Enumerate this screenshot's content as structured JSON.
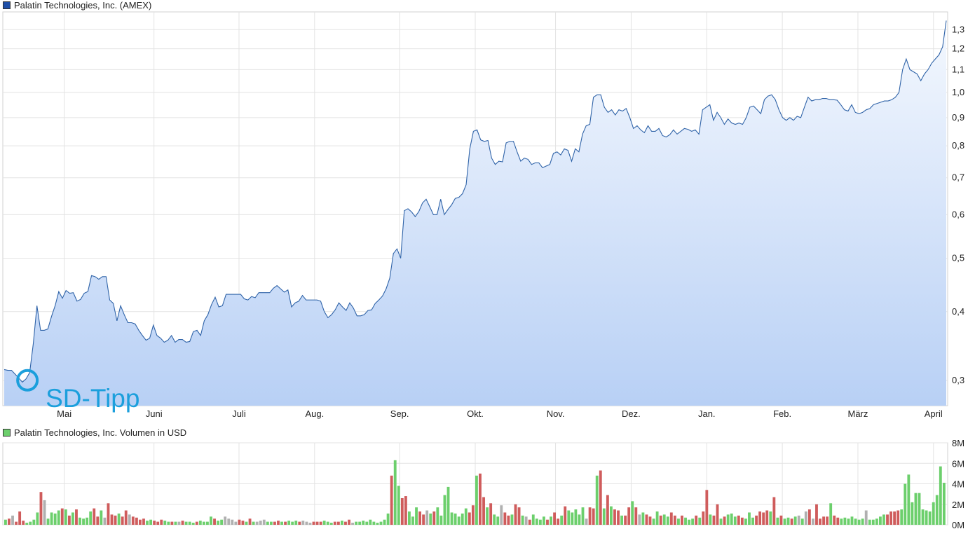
{
  "price_legend": {
    "label": "Palatin Technologies, Inc. (AMEX)",
    "color": "#1f4fa8"
  },
  "volume_legend": {
    "label": "Palatin Technologies, Inc. Volumen in USD",
    "color": "#6ccf6c"
  },
  "annotation": {
    "label": "SD-Tipp",
    "color": "#1b9fdc"
  },
  "chart_data": [
    {
      "type": "area",
      "scale": "log",
      "ylim": [
        0.27,
        1.4
      ],
      "yticks": [
        0.3,
        0.4,
        0.5,
        0.6,
        0.7,
        0.8,
        0.9,
        1.0,
        1.1,
        1.2,
        1.3
      ],
      "ytick_labels": [
        "0,3",
        "0,4",
        "0,5",
        "0,6",
        "0,7",
        "0,8",
        "0,9",
        "1,0",
        "1,1",
        "1,2",
        "1,3"
      ],
      "months": [
        "Mai",
        "Juni",
        "Juli",
        "Aug.",
        "Sep.",
        "Okt.",
        "Nov.",
        "Dez.",
        "Jan.",
        "Feb.",
        "März",
        "April"
      ],
      "month_pos": [
        0.065,
        0.16,
        0.25,
        0.33,
        0.42,
        0.5,
        0.585,
        0.665,
        0.745,
        0.825,
        0.905,
        0.985
      ],
      "series": [
        {
          "color": "#2f63a8",
          "values": [
            0.314,
            0.313,
            0.313,
            0.308,
            0.303,
            0.298,
            0.302,
            0.31,
            0.35,
            0.41,
            0.37,
            0.37,
            0.372,
            0.392,
            0.41,
            0.435,
            0.423,
            0.437,
            0.432,
            0.433,
            0.418,
            0.421,
            0.432,
            0.435,
            0.465,
            0.463,
            0.458,
            0.463,
            0.463,
            0.42,
            0.414,
            0.385,
            0.41,
            0.395,
            0.382,
            0.382,
            0.38,
            0.37,
            0.362,
            0.355,
            0.358,
            0.378,
            0.362,
            0.358,
            0.352,
            0.355,
            0.362,
            0.352,
            0.356,
            0.356,
            0.352,
            0.353,
            0.368,
            0.37,
            0.362,
            0.385,
            0.395,
            0.412,
            0.425,
            0.408,
            0.41,
            0.43,
            0.43,
            0.43,
            0.43,
            0.43,
            0.422,
            0.42,
            0.426,
            0.424,
            0.433,
            0.433,
            0.433,
            0.433,
            0.441,
            0.446,
            0.44,
            0.434,
            0.438,
            0.408,
            0.415,
            0.418,
            0.428,
            0.42,
            0.42,
            0.42,
            0.42,
            0.418,
            0.4,
            0.39,
            0.395,
            0.403,
            0.415,
            0.408,
            0.402,
            0.415,
            0.406,
            0.393,
            0.393,
            0.395,
            0.402,
            0.403,
            0.414,
            0.42,
            0.427,
            0.44,
            0.46,
            0.51,
            0.52,
            0.5,
            0.61,
            0.615,
            0.607,
            0.595,
            0.608,
            0.63,
            0.64,
            0.62,
            0.6,
            0.6,
            0.64,
            0.6,
            0.613,
            0.625,
            0.642,
            0.645,
            0.655,
            0.68,
            0.79,
            0.85,
            0.855,
            0.82,
            0.815,
            0.818,
            0.76,
            0.74,
            0.75,
            0.748,
            0.81,
            0.815,
            0.815,
            0.78,
            0.75,
            0.76,
            0.756,
            0.74,
            0.745,
            0.745,
            0.73,
            0.735,
            0.74,
            0.775,
            0.78,
            0.77,
            0.79,
            0.785,
            0.75,
            0.79,
            0.78,
            0.84,
            0.87,
            0.875,
            0.98,
            0.99,
            0.99,
            0.94,
            0.92,
            0.93,
            0.91,
            0.93,
            0.925,
            0.935,
            0.9,
            0.86,
            0.87,
            0.855,
            0.845,
            0.87,
            0.85,
            0.85,
            0.86,
            0.835,
            0.83,
            0.838,
            0.855,
            0.84,
            0.85,
            0.86,
            0.857,
            0.85,
            0.855,
            0.84,
            0.93,
            0.94,
            0.95,
            0.89,
            0.92,
            0.9,
            0.875,
            0.895,
            0.88,
            0.875,
            0.88,
            0.875,
            0.9,
            0.94,
            0.945,
            0.93,
            0.915,
            0.97,
            0.985,
            0.99,
            0.97,
            0.93,
            0.9,
            0.89,
            0.9,
            0.89,
            0.905,
            0.9,
            0.94,
            0.98,
            0.965,
            0.97,
            0.97,
            0.975,
            0.975,
            0.97,
            0.97,
            0.968,
            0.95,
            0.93,
            0.925,
            0.95,
            0.92,
            0.915,
            0.92,
            0.93,
            0.935,
            0.95,
            0.955,
            0.96,
            0.965,
            0.965,
            0.97,
            0.98,
            1.0,
            1.1,
            1.15,
            1.1,
            1.09,
            1.08,
            1.05,
            1.08,
            1.1,
            1.13,
            1.15,
            1.17,
            1.21,
            1.35
          ]
        }
      ]
    },
    {
      "type": "bar",
      "ylim": [
        0,
        8
      ],
      "yticks": [
        0,
        2,
        4,
        6,
        8
      ],
      "ytick_labels": [
        "0M",
        "2M",
        "4M",
        "6M",
        "8M"
      ],
      "up_color": "#6ccf6c",
      "down_color": "#cf5c5c",
      "neutral_color": "#b0b0b0",
      "values": [
        0.5,
        0.6,
        0.9,
        0.3,
        1.3,
        0.4,
        0.2,
        0.3,
        0.5,
        1.2,
        3.2,
        2.4,
        0.6,
        1.2,
        1.1,
        1.4,
        1.6,
        1.5,
        0.9,
        1.2,
        1.5,
        0.7,
        0.6,
        0.7,
        1.3,
        1.6,
        0.8,
        1.4,
        0.7,
        2.1,
        1.0,
        0.9,
        1.1,
        0.8,
        1.4,
        1.0,
        0.8,
        0.7,
        0.5,
        0.6,
        0.4,
        0.5,
        0.4,
        0.3,
        0.5,
        0.4,
        0.3,
        0.3,
        0.3,
        0.3,
        0.4,
        0.3,
        0.3,
        0.2,
        0.3,
        0.4,
        0.3,
        0.3,
        0.8,
        0.6,
        0.4,
        0.5,
        0.8,
        0.6,
        0.5,
        0.3,
        0.5,
        0.4,
        0.3,
        0.6,
        0.3,
        0.3,
        0.4,
        0.5,
        0.3,
        0.3,
        0.3,
        0.4,
        0.3,
        0.3,
        0.4,
        0.3,
        0.4,
        0.3,
        0.4,
        0.3,
        0.2,
        0.3,
        0.3,
        0.3,
        0.4,
        0.3,
        0.2,
        0.3,
        0.3,
        0.4,
        0.3,
        0.5,
        0.2,
        0.3,
        0.3,
        0.4,
        0.3,
        0.5,
        0.3,
        0.2,
        0.3,
        0.5,
        1.1,
        4.8,
        6.3,
        3.8,
        2.6,
        2.8,
        1.3,
        0.8,
        1.7,
        1.3,
        1.0,
        1.4,
        1.1,
        1.3,
        1.7,
        0.9,
        2.9,
        3.7,
        1.2,
        1.1,
        0.8,
        1.1,
        1.6,
        1.2,
        1.9,
        4.8,
        5.0,
        2.7,
        1.7,
        2.1,
        1.0,
        0.8,
        1.9,
        1.2,
        0.9,
        1.0,
        2.0,
        1.7,
        0.9,
        0.8,
        0.5,
        1.0,
        0.6,
        0.5,
        0.8,
        0.5,
        0.8,
        1.2,
        0.6,
        0.9,
        1.8,
        1.4,
        1.2,
        1.5,
        1.0,
        1.7,
        0.6,
        1.7,
        1.6,
        4.8,
        5.3,
        1.6,
        2.9,
        1.8,
        1.5,
        1.4,
        0.9,
        0.9,
        1.7,
        2.3,
        1.7,
        1.0,
        1.2,
        1.0,
        0.8,
        0.6,
        1.3,
        0.9,
        1.0,
        0.8,
        1.2,
        0.9,
        0.6,
        0.9,
        0.7,
        0.5,
        0.6,
        0.9,
        0.7,
        1.3,
        3.4,
        1.0,
        0.9,
        2.0,
        0.6,
        0.8,
        1.0,
        1.1,
        0.8,
        0.9,
        0.7,
        0.6,
        1.2,
        0.7,
        0.9,
        1.3,
        1.2,
        1.4,
        1.3,
        2.7,
        0.7,
        0.9,
        0.6,
        0.7,
        0.6,
        0.8,
        0.9,
        0.6,
        1.3,
        1.5,
        0.6,
        2.0,
        0.6,
        0.8,
        0.8,
        2.1,
        0.9,
        0.7,
        0.6,
        0.7,
        0.6,
        0.8,
        0.6,
        0.5,
        0.6,
        1.4,
        0.5,
        0.5,
        0.6,
        0.8,
        1.0,
        1.0,
        1.3,
        1.3,
        1.4,
        1.5,
        4.0,
        4.9,
        2.2,
        3.1,
        3.1,
        1.5,
        1.4,
        1.3,
        2.2,
        2.9,
        5.7,
        4.1
      ]
    }
  ]
}
